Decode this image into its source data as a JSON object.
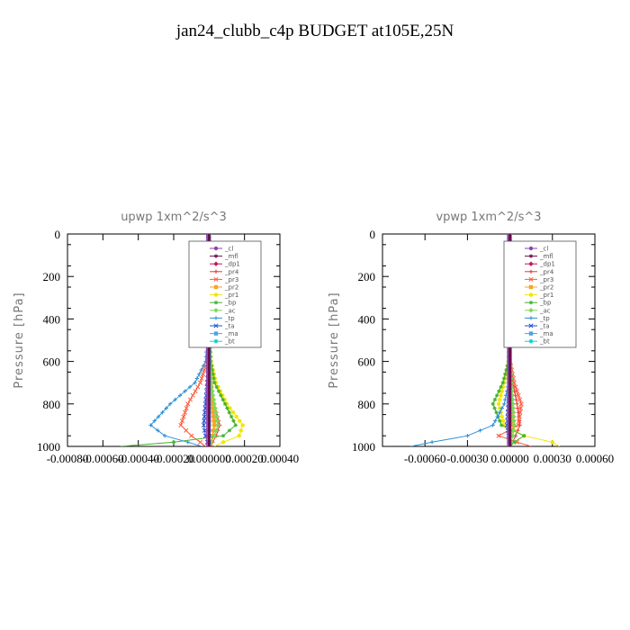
{
  "title": "jan24_clubb_c4p  BUDGET at105E,25N",
  "legend_entries": [
    "_cl",
    "_mfl",
    "_dp1",
    "_pr4",
    "_pr3",
    "_pr2",
    "_pr1",
    "_bp",
    "_ac",
    "_tp",
    "_ta",
    "_ma",
    "_bt"
  ],
  "colors": {
    "_cl": "#8e44ad",
    "_mfl": "#6a0d4f",
    "_dp1": "#c2185b",
    "_pr4": "#e53935",
    "_pr3": "#ff5a3c",
    "_pr2": "#f5a623",
    "_pr1": "#f2e600",
    "_bp": "#43b02a",
    "_ac": "#7ed957",
    "_tp": "#2a8fd6",
    "_ta": "#1f4fd1",
    "_ma": "#4fa3e0",
    "_bt": "#1ecfd6"
  },
  "chart_data": [
    {
      "type": "line",
      "panel": "upwp",
      "title": "upwp   1xm^2/s^3",
      "ylabel": "Pressure [hPa]",
      "y_inverted": true,
      "ylim": [
        1000,
        0
      ],
      "xlim": [
        -0.0008,
        0.0004
      ],
      "xticks": [
        -0.0008,
        -0.0006,
        -0.0004,
        -0.0002,
        0.0,
        0.0002,
        0.0004
      ],
      "xtick_labels": [
        "-0.00080",
        "-0.00060",
        "-0.00040",
        "-0.00020",
        "0.000000",
        "0.00020",
        "0.00040"
      ],
      "yticks": [
        0,
        200,
        400,
        600,
        800,
        1000
      ],
      "ytick_labels": [
        "0",
        "200",
        "400",
        "600",
        "800",
        "1000"
      ],
      "legend": "top-right",
      "series": [
        {
          "name": "_cl",
          "x": [
            0,
            0,
            0,
            0,
            0,
            0,
            0,
            0,
            0,
            0
          ],
          "y": [
            0,
            200,
            400,
            600,
            700,
            800,
            900,
            950,
            980,
            1000
          ]
        },
        {
          "name": "_mfl",
          "x": [
            0,
            0,
            0,
            0,
            0,
            0,
            0,
            0,
            0,
            0
          ],
          "y": [
            0,
            200,
            400,
            600,
            700,
            800,
            900,
            950,
            980,
            1000
          ]
        },
        {
          "name": "_dp1",
          "x": [
            0,
            0,
            0,
            0,
            1e-05,
            2e-05,
            3e-05,
            2e-05,
            1e-05,
            0
          ],
          "y": [
            0,
            200,
            400,
            600,
            700,
            800,
            900,
            950,
            980,
            1000
          ]
        },
        {
          "name": "_pr4",
          "x": [
            0,
            0,
            0,
            0,
            1e-05,
            3e-05,
            6e-05,
            4e-05,
            2e-05,
            1e-05
          ],
          "y": [
            0,
            200,
            400,
            600,
            700,
            800,
            900,
            950,
            980,
            1000
          ]
        },
        {
          "name": "_pr3",
          "x": [
            0,
            0,
            0,
            -1e-05,
            -5e-05,
            -0.00012,
            -0.00016,
            -0.0001,
            -5e-05,
            -2e-05
          ],
          "y": [
            0,
            200,
            400,
            600,
            700,
            800,
            900,
            950,
            980,
            1000
          ]
        },
        {
          "name": "_pr2",
          "x": [
            0,
            0,
            0,
            0,
            1e-05,
            2e-05,
            3e-05,
            2e-05,
            1e-05,
            0
          ],
          "y": [
            0,
            200,
            400,
            600,
            700,
            800,
            900,
            950,
            980,
            1000
          ]
        },
        {
          "name": "_pr1",
          "x": [
            0,
            0,
            0,
            1e-05,
            4e-05,
            0.0001,
            0.00019,
            0.00017,
            8e-05,
            3e-05
          ],
          "y": [
            0,
            200,
            400,
            600,
            700,
            800,
            900,
            950,
            980,
            1000
          ]
        },
        {
          "name": "_bp",
          "x": [
            0,
            0,
            0,
            1e-05,
            3e-05,
            9e-05,
            0.00015,
            8e-05,
            -0.0002,
            -0.0005
          ],
          "y": [
            0,
            200,
            400,
            600,
            700,
            800,
            900,
            950,
            980,
            1000
          ]
        },
        {
          "name": "_ac",
          "x": [
            0,
            0,
            0,
            0,
            1e-05,
            3e-05,
            5e-05,
            3e-05,
            1e-05,
            0
          ],
          "y": [
            0,
            200,
            400,
            600,
            700,
            800,
            900,
            950,
            980,
            1000
          ]
        },
        {
          "name": "_tp",
          "x": [
            0,
            0,
            0,
            -2e-05,
            -8e-05,
            -0.00022,
            -0.00033,
            -0.00025,
            -0.00012,
            -4e-05
          ],
          "y": [
            0,
            200,
            400,
            600,
            700,
            800,
            900,
            950,
            980,
            1000
          ]
        },
        {
          "name": "_ta",
          "x": [
            0,
            0,
            0,
            0,
            -1e-05,
            -2e-05,
            -3e-05,
            -2e-05,
            -1e-05,
            0
          ],
          "y": [
            0,
            200,
            400,
            600,
            700,
            800,
            900,
            950,
            980,
            1000
          ]
        },
        {
          "name": "_ma",
          "x": [
            0,
            0,
            0,
            0,
            0,
            0,
            0,
            0,
            0,
            0
          ],
          "y": [
            0,
            200,
            400,
            600,
            700,
            800,
            900,
            950,
            980,
            1000
          ]
        },
        {
          "name": "_bt",
          "x": [
            0,
            0,
            0,
            0,
            0,
            0,
            0,
            0,
            0,
            0
          ],
          "y": [
            0,
            200,
            400,
            600,
            700,
            800,
            900,
            950,
            980,
            1000
          ]
        }
      ]
    },
    {
      "type": "line",
      "panel": "vpwp",
      "title": "vpwp   1xm^2/s^3",
      "ylabel": "Pressure [hPa]",
      "y_inverted": true,
      "ylim": [
        1000,
        0
      ],
      "xlim": [
        -0.0009,
        0.0006
      ],
      "xticks": [
        -0.0006,
        -0.0003,
        0.0,
        0.0003,
        0.0006
      ],
      "xtick_labels": [
        "-0.00060",
        "-0.00030",
        "0.00000",
        "0.00030",
        "0.00060"
      ],
      "yticks": [
        0,
        200,
        400,
        600,
        800,
        1000
      ],
      "ytick_labels": [
        "0",
        "200",
        "400",
        "600",
        "800",
        "1000"
      ],
      "legend": "top-right",
      "series": [
        {
          "name": "_cl",
          "x": [
            0,
            0,
            0,
            0,
            0,
            0,
            0,
            0,
            0,
            0
          ],
          "y": [
            0,
            200,
            400,
            600,
            700,
            800,
            900,
            950,
            980,
            1000
          ]
        },
        {
          "name": "_mfl",
          "x": [
            0,
            0,
            0,
            0,
            0,
            0,
            0,
            0,
            0,
            0
          ],
          "y": [
            0,
            200,
            400,
            600,
            700,
            800,
            900,
            950,
            980,
            1000
          ]
        },
        {
          "name": "_dp1",
          "x": [
            0,
            0,
            0,
            0,
            1e-05,
            2e-05,
            3e-05,
            2e-05,
            1e-05,
            0
          ],
          "y": [
            0,
            200,
            400,
            600,
            700,
            800,
            900,
            950,
            980,
            1000
          ]
        },
        {
          "name": "_pr4",
          "x": [
            0,
            0,
            0,
            0,
            2e-05,
            5e-05,
            7e-05,
            4e-05,
            2e-05,
            1e-05
          ],
          "y": [
            0,
            200,
            400,
            600,
            700,
            800,
            900,
            950,
            980,
            1000
          ]
        },
        {
          "name": "_pr3",
          "x": [
            0,
            0,
            0,
            0,
            3e-05,
            8e-05,
            6e-05,
            -8e-05,
            5e-05,
            0.00015
          ],
          "y": [
            0,
            200,
            400,
            600,
            700,
            800,
            900,
            950,
            980,
            1000
          ]
        },
        {
          "name": "_pr2",
          "x": [
            0,
            0,
            0,
            0,
            0,
            1e-05,
            2e-05,
            1e-05,
            0,
            0
          ],
          "y": [
            0,
            200,
            400,
            600,
            700,
            800,
            900,
            950,
            980,
            1000
          ]
        },
        {
          "name": "_pr1",
          "x": [
            0,
            0,
            0,
            -1e-05,
            -4e-05,
            -8e-05,
            -4e-05,
            0.0001,
            0.0003,
            0.00035
          ],
          "y": [
            0,
            200,
            400,
            600,
            700,
            800,
            900,
            950,
            980,
            1000
          ]
        },
        {
          "name": "_bp",
          "x": [
            0,
            0,
            0,
            -1e-05,
            -5e-05,
            -0.00012,
            -6e-05,
            0.0001,
            3e-05,
            0
          ],
          "y": [
            0,
            200,
            400,
            600,
            700,
            800,
            900,
            950,
            980,
            1000
          ]
        },
        {
          "name": "_ac",
          "x": [
            0,
            0,
            0,
            0,
            1e-05,
            2e-05,
            3e-05,
            2e-05,
            1e-05,
            0
          ],
          "y": [
            0,
            200,
            400,
            600,
            700,
            800,
            900,
            950,
            980,
            1000
          ]
        },
        {
          "name": "_tp",
          "x": [
            0,
            0,
            0,
            0,
            -1e-05,
            -4e-05,
            -0.00012,
            -0.0003,
            -0.00055,
            -0.0007
          ],
          "y": [
            0,
            200,
            400,
            600,
            700,
            800,
            900,
            950,
            980,
            1000
          ]
        },
        {
          "name": "_ta",
          "x": [
            0,
            0,
            0,
            0,
            0,
            -1e-05,
            -2e-05,
            -1e-05,
            0,
            0
          ],
          "y": [
            0,
            200,
            400,
            600,
            700,
            800,
            900,
            950,
            980,
            1000
          ]
        },
        {
          "name": "_ma",
          "x": [
            0,
            0,
            0,
            0,
            0,
            0,
            0,
            0,
            0,
            0
          ],
          "y": [
            0,
            200,
            400,
            600,
            700,
            800,
            900,
            950,
            980,
            1000
          ]
        },
        {
          "name": "_bt",
          "x": [
            0,
            0,
            0,
            0,
            0,
            0,
            0,
            0,
            0,
            0
          ],
          "y": [
            0,
            200,
            400,
            600,
            700,
            800,
            900,
            950,
            980,
            1000
          ]
        }
      ]
    }
  ]
}
